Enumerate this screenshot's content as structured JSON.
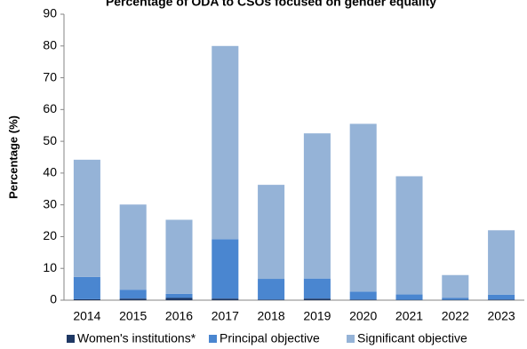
{
  "chart_data": {
    "type": "stacked_bar",
    "title": "Percentage of ODA to CSOs focused on gender equality",
    "y_label": "Percentage (%)",
    "categories": [
      "2014",
      "2015",
      "2016",
      "2017",
      "2018",
      "2019",
      "2020",
      "2021",
      "2022",
      "2023"
    ],
    "series": [
      {
        "name": "Women's institutions*",
        "color": "#1f3864",
        "values": [
          0.3,
          0.5,
          0.7,
          0.5,
          0.2,
          0.5,
          0.2,
          0.1,
          0.1,
          0.2
        ]
      },
      {
        "name": "Principal objective",
        "color": "#4a86d0",
        "values": [
          7.0,
          2.8,
          1.3,
          18.7,
          6.5,
          6.3,
          2.5,
          1.7,
          0.6,
          1.5
        ]
      },
      {
        "name": "Significant objective",
        "color": "#95b3d7",
        "values": [
          36.9,
          26.8,
          23.3,
          60.8,
          29.6,
          45.7,
          52.8,
          37.2,
          7.2,
          20.3
        ]
      }
    ],
    "ylim": [
      0,
      90
    ],
    "yticks": [
      0,
      10,
      20,
      30,
      40,
      50,
      60,
      70,
      80,
      90
    ],
    "grid": false,
    "legend": "bottom"
  }
}
